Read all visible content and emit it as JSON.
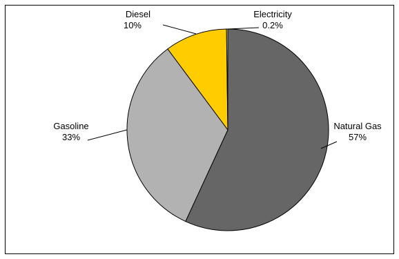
{
  "chart_data": {
    "type": "pie",
    "title": "",
    "slices": [
      {
        "label": "Natural Gas",
        "value": 57,
        "value_label": "57%",
        "color": "#666666"
      },
      {
        "label": "Gasoline",
        "value": 33,
        "value_label": "33%",
        "color": "#b2b2b2"
      },
      {
        "label": "Diesel",
        "value": 10,
        "value_label": "10%",
        "color": "#ffcc00"
      },
      {
        "label": "Electricity",
        "value": 0.2,
        "value_label": "0.2%",
        "color": "#ffff99"
      }
    ],
    "start_angle": "12 o'clock",
    "direction": "clockwise",
    "legend": "none",
    "data_labels": "category name and percentage, outside slices with leader lines"
  }
}
